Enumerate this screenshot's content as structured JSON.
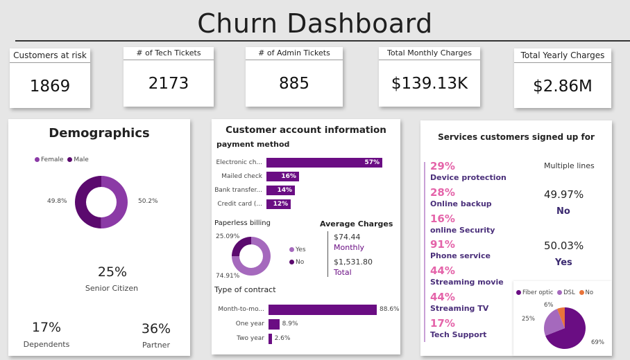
{
  "title": "Churn Dashboard",
  "kpis": [
    {
      "label": "Customers at risk",
      "value": "1869"
    },
    {
      "label": "# of Tech Tickets",
      "value": "2173"
    },
    {
      "label": "# of Admin Tickets",
      "value": "885"
    },
    {
      "label": "Total Monthly Charges",
      "value": "$139.13K"
    },
    {
      "label": "Total Yearly Charges",
      "value": "$2.86M"
    }
  ],
  "demographics": {
    "title": "Demographics",
    "senior_value": "25%",
    "senior_label": "Senior Citizen",
    "dependents_value": "17%",
    "dependents_label": "Dependents",
    "partner_value": "36%",
    "partner_label": "Partner"
  },
  "account": {
    "title": "Customer account information",
    "payment_title": "payment method",
    "paperless_title": "Paperless billing",
    "avg_title": "Average Charges",
    "avg_monthly_value": "$74.44",
    "avg_monthly_label": "Monthly",
    "avg_total_value": "$1,531.80",
    "avg_total_label": "Total",
    "contract_title": "Type of contract"
  },
  "services": {
    "title": "Services customers signed up for",
    "items": [
      {
        "pct": "29%",
        "name": "Device protection"
      },
      {
        "pct": "28%",
        "name": "Online backup"
      },
      {
        "pct": "16%",
        "name": "online Security"
      },
      {
        "pct": "91%",
        "name": "Phone service"
      },
      {
        "pct": "44%",
        "name": "Streaming movie"
      },
      {
        "pct": "44%",
        "name": "Streaming TV"
      },
      {
        "pct": "17%",
        "name": "Tech Support"
      }
    ],
    "multiple_lines_title": "Multiple lines",
    "no_pct": "49.97%",
    "no_label": "No",
    "yes_pct": "50.03%",
    "yes_label": "Yes"
  },
  "colors": {
    "purple_dark": "#5b0a6e",
    "purple_mid": "#8b3aa6",
    "purple_light": "#a569bd",
    "pink": "#e463a9",
    "orange": "#e8743b",
    "navy": "#3b2a70"
  },
  "chart_data": [
    {
      "type": "pie",
      "name": "gender",
      "labels": [
        "Female",
        "Male"
      ],
      "values": [
        50.2,
        49.8
      ],
      "value_labels": [
        "50.2%",
        "49.8%"
      ],
      "colors": [
        "#8b3aa6",
        "#5b0a6e"
      ],
      "donut": true,
      "legend": "top-left"
    },
    {
      "type": "bar",
      "name": "payment method",
      "orientation": "horizontal",
      "categories": [
        "Electronic ch...",
        "Mailed check",
        "Bank transfer...",
        "Credit card (..."
      ],
      "values": [
        57,
        16,
        14,
        12
      ],
      "value_labels": [
        "57%",
        "16%",
        "14%",
        "12%"
      ],
      "color": "#6a0d83"
    },
    {
      "type": "pie",
      "name": "Paperless billing",
      "labels": [
        "Yes",
        "No"
      ],
      "values": [
        74.91,
        25.09
      ],
      "value_labels": [
        "74.91%",
        "25.09%"
      ],
      "colors": [
        "#a569bd",
        "#5b0a6e"
      ],
      "donut": true,
      "legend": "right"
    },
    {
      "type": "bar",
      "name": "Type of contract",
      "orientation": "horizontal",
      "categories": [
        "Month-to-mo...",
        "One year",
        "Two year"
      ],
      "values": [
        88.6,
        8.9,
        2.6
      ],
      "value_labels": [
        "88.6%",
        "8.9%",
        "2.6%"
      ],
      "color": "#6a0d83"
    },
    {
      "type": "pie",
      "name": "internet service",
      "labels": [
        "Fiber optic",
        "DSL",
        "No"
      ],
      "values": [
        69,
        25,
        6
      ],
      "value_labels": [
        "69%",
        "25%",
        "6%"
      ],
      "colors": [
        "#6a0d83",
        "#a569bd",
        "#e8743b"
      ],
      "legend": "top"
    }
  ]
}
